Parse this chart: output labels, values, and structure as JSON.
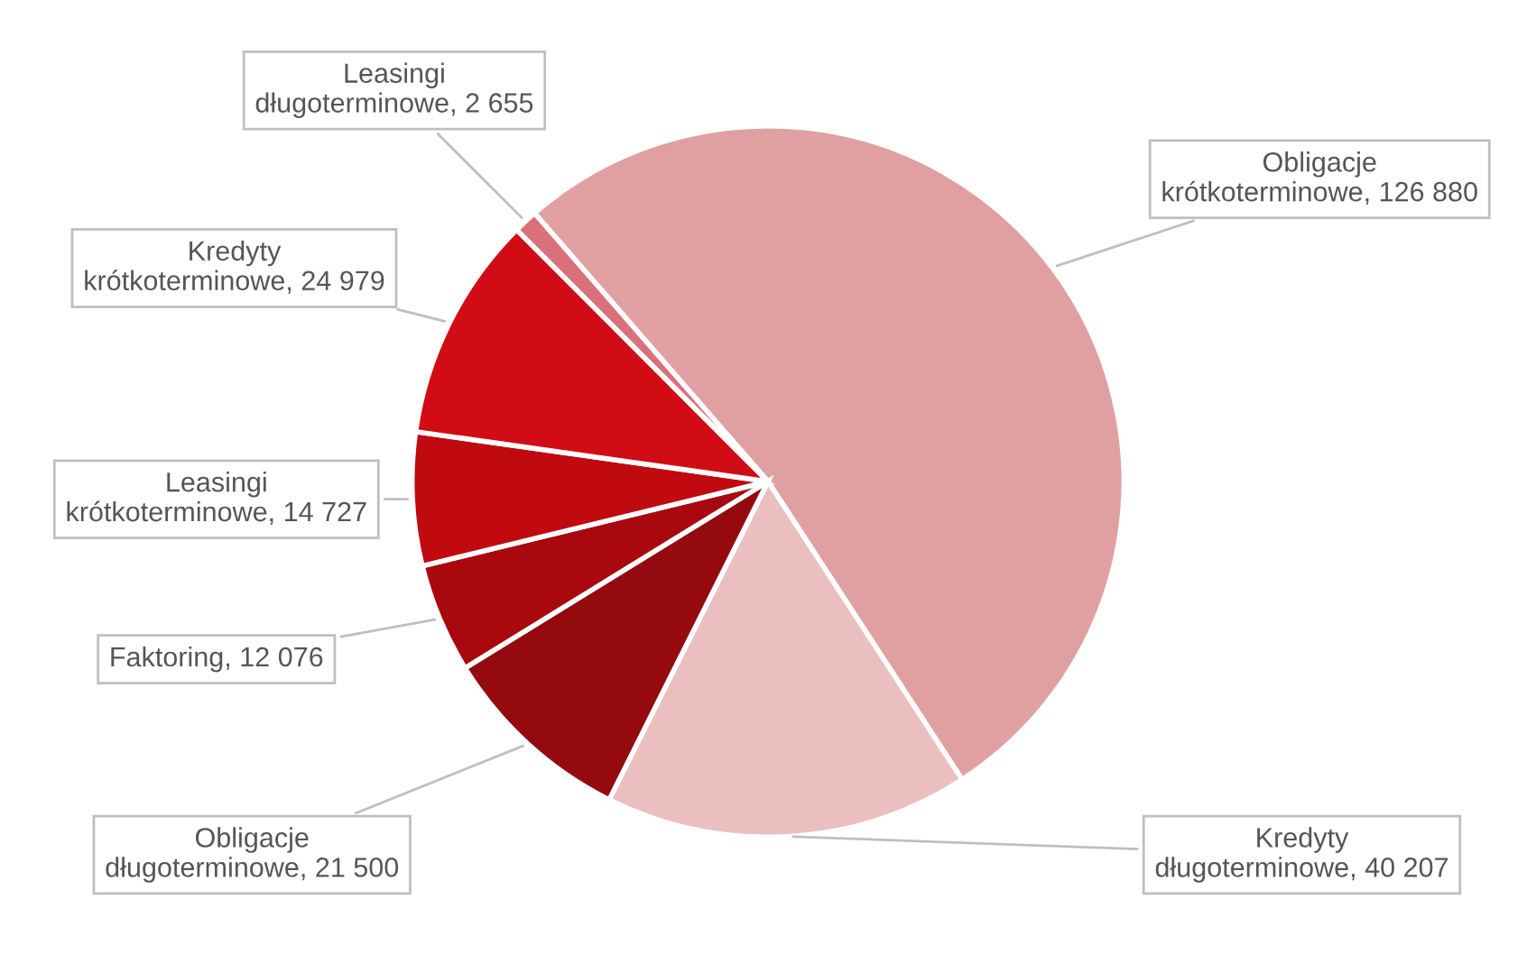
{
  "chart_data": {
    "type": "pie",
    "categories": [
      "Obligacje krótkoterminowe",
      "Kredyty długoterminowe",
      "Obligacje długoterminowe",
      "Faktoring",
      "Leasingi krótkoterminowe",
      "Kredyty krótkoterminowe",
      "Leasingi długoterminowe"
    ],
    "values": [
      126880,
      40207,
      21500,
      12076,
      14727,
      24979,
      2655
    ],
    "value_labels": [
      "126 880",
      "40 207",
      "21 500",
      "12 076",
      "14 727",
      "24 979",
      "2 655"
    ],
    "colors": [
      "#e0a0a2",
      "#ebbfc0",
      "#940a0e",
      "#a8080e",
      "#c00a10",
      "#d20c14",
      "#d9707a"
    ],
    "legend": false
  }
}
